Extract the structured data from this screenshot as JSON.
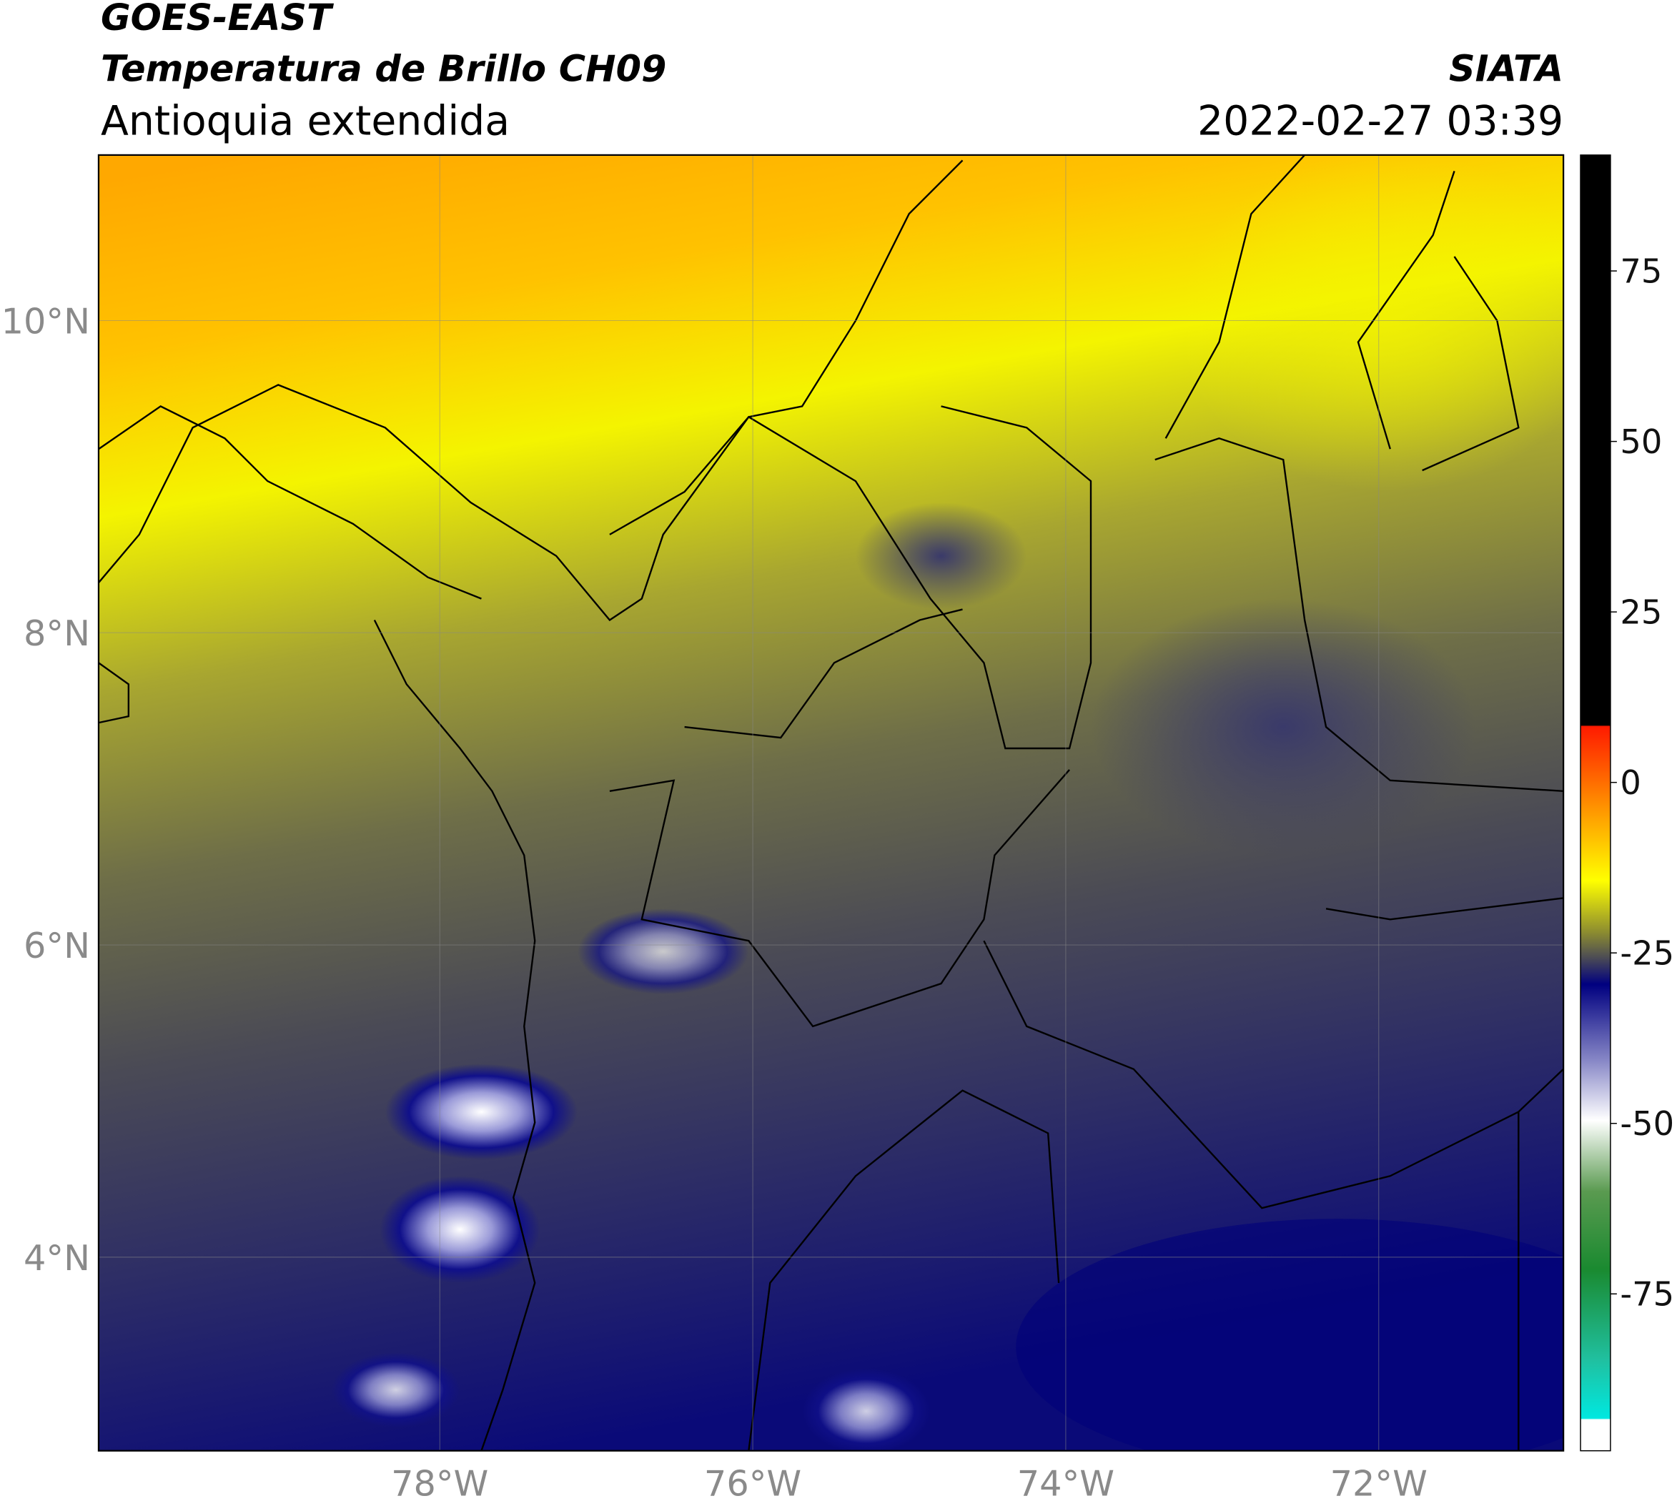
{
  "header": {
    "title": "GOES-EAST",
    "subtitle": "Temperatura de Brillo CH09",
    "region": "Antioquia extendida",
    "source": "SIATA",
    "datetime": "2022-02-27 03:39"
  },
  "chart_data": {
    "type": "map",
    "xlim": [
      -80.18,
      -70.82
    ],
    "ylim": [
      2.76,
      11.06
    ],
    "xticks": [
      {
        "value": -78,
        "label": "78°W"
      },
      {
        "value": -76,
        "label": "76°W"
      },
      {
        "value": -74,
        "label": "74°W"
      },
      {
        "value": -72,
        "label": "72°W"
      }
    ],
    "yticks": [
      {
        "value": 4,
        "label": "4°N"
      },
      {
        "value": 6,
        "label": "6°N"
      },
      {
        "value": 8,
        "label": "8°N"
      },
      {
        "value": 10,
        "label": "10°N"
      }
    ],
    "grid": true,
    "colorbar": {
      "lim": [
        -98,
        92
      ],
      "ticks": [
        -75,
        -50,
        -25,
        0,
        25,
        50,
        75
      ]
    }
  }
}
